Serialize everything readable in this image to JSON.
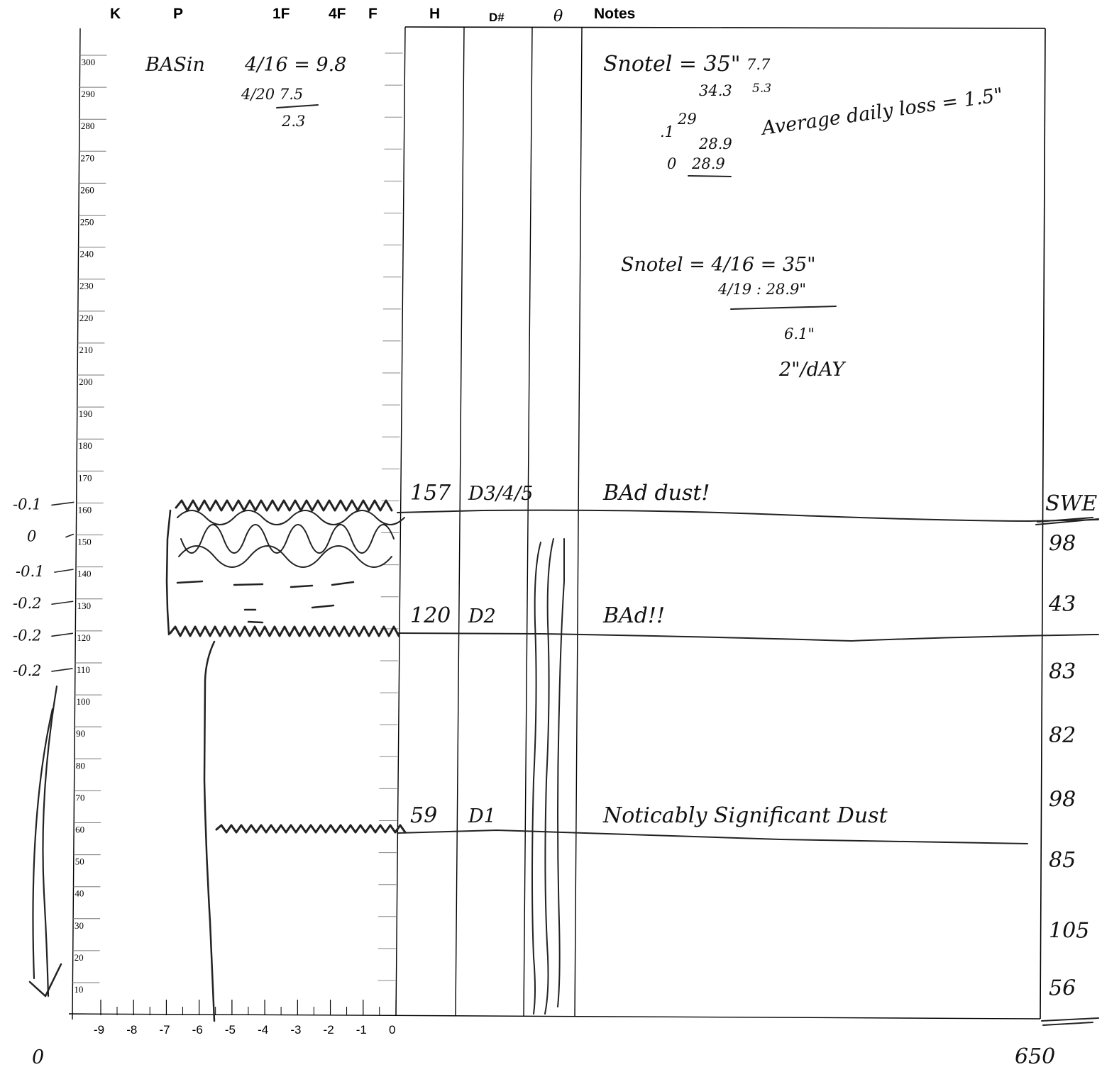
{
  "headers": {
    "k": "K",
    "p": "P",
    "f1": "1F",
    "f4": "4F",
    "f": "F",
    "h": "H",
    "dnum": "D#",
    "theta": "θ",
    "notes": "Notes"
  },
  "depth_ticks": [
    "300",
    "290",
    "280",
    "270",
    "260",
    "250",
    "240",
    "230",
    "220",
    "210",
    "200",
    "190",
    "180",
    "170",
    "160",
    "150",
    "140",
    "130",
    "120",
    "110",
    "100",
    "90",
    "80",
    "70",
    "60",
    "50",
    "40",
    "30",
    "20",
    "10"
  ],
  "hardness_ticks": [
    "-9",
    "-8",
    "-7",
    "-6",
    "-5",
    "-4",
    "-3",
    "-2",
    "-1",
    "0"
  ],
  "handwriting": {
    "basin": {
      "label": "BASin",
      "line1": "4/16 = 9.8",
      "line2": "4/20  7.5",
      "diff": "2.3"
    },
    "snotel_calc": {
      "label": "Snotel = 35\"",
      "l1_note": "7.7",
      "l2": "34.3",
      "l2_note": "5.3",
      "l3_pre": ".1",
      "l3": "29",
      "l4": "28.9",
      "l5_pre": "0",
      "l5": "28.9",
      "avg": "Average daily loss = 1.5\""
    },
    "snotel_block": {
      "line1": "Snotel = 4/16 = 35\"",
      "line2": "4/19 : 28.9\"",
      "diff": "6.1\"",
      "rate": "2\"/dAY"
    },
    "layers": [
      {
        "h": "157",
        "d": "D3/4/5",
        "note": "BAd dust!"
      },
      {
        "h": "120",
        "d": "D2",
        "note": "BAd!!"
      },
      {
        "h": "59",
        "d": "D1",
        "note": "Noticably Significant Dust"
      }
    ],
    "temps": [
      {
        "v": "-0.1",
        "depth": 162
      },
      {
        "v": "0",
        "depth": 152
      },
      {
        "v": "-0.1",
        "depth": 141
      },
      {
        "v": "-0.2",
        "depth": 131
      },
      {
        "v": "-0.2",
        "depth": 121
      },
      {
        "v": "-0.2",
        "depth": 110
      }
    ],
    "temp_bottom": "0",
    "swe": {
      "label": "SWE",
      "values": [
        {
          "v": "98",
          "depth": 150
        },
        {
          "v": "43",
          "depth": 131
        },
        {
          "v": "83",
          "depth": 110
        },
        {
          "v": "82",
          "depth": 90
        },
        {
          "v": "98",
          "depth": 70
        },
        {
          "v": "85",
          "depth": 51
        },
        {
          "v": "105",
          "depth": 29
        },
        {
          "v": "56",
          "depth": 11
        }
      ],
      "total": "650"
    }
  }
}
